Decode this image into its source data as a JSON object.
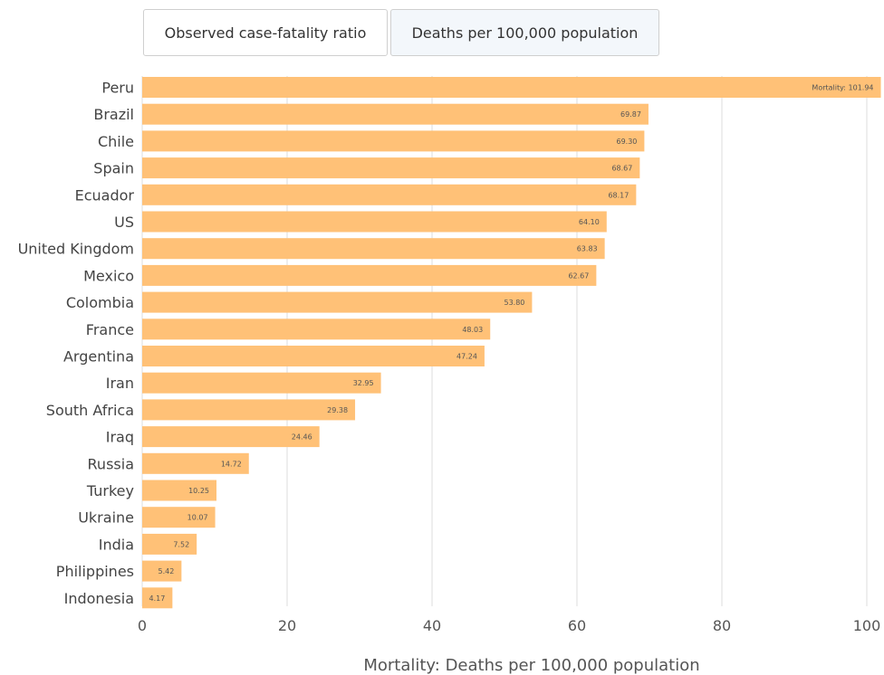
{
  "tabs": [
    {
      "label": "Observed case-fatality ratio",
      "selected": false
    },
    {
      "label": "Deaths per 100,000 population",
      "selected": true
    }
  ],
  "chart_data": {
    "type": "bar",
    "orientation": "horizontal",
    "categories": [
      "Peru",
      "Brazil",
      "Chile",
      "Spain",
      "Ecuador",
      "US",
      "United Kingdom",
      "Mexico",
      "Colombia",
      "France",
      "Argentina",
      "Iran",
      "South Africa",
      "Iraq",
      "Russia",
      "Turkey",
      "Ukraine",
      "India",
      "Philippines",
      "Indonesia"
    ],
    "values": [
      101.94,
      69.87,
      69.3,
      68.67,
      68.17,
      64.1,
      63.83,
      62.67,
      53.8,
      48.03,
      47.24,
      32.95,
      29.38,
      24.46,
      14.72,
      10.25,
      10.07,
      7.52,
      5.42,
      4.17
    ],
    "data_labels": [
      "Mortality: 101.94",
      "69.87",
      "69.30",
      "68.67",
      "68.17",
      "64.10",
      "63.83",
      "62.67",
      "53.80",
      "48.03",
      "47.24",
      "32.95",
      "29.38",
      "24.46",
      "14.72",
      "10.25",
      "10.07",
      "7.52",
      "5.42",
      "4.17"
    ],
    "xlabel": "Mortality: Deaths per 100,000 population",
    "xlim": [
      0,
      102
    ],
    "xticks": [
      0,
      20,
      40,
      60,
      80,
      100
    ],
    "bar_color": "#ffc177",
    "grid": true
  }
}
